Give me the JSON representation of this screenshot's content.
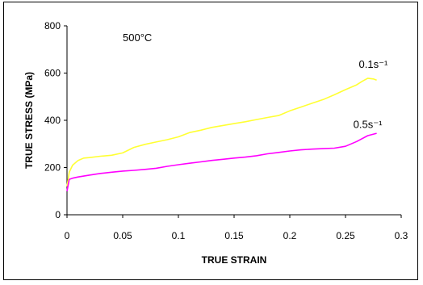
{
  "chart_data": {
    "type": "line",
    "title": "",
    "xlabel": "TRUE STRAIN",
    "ylabel": "TRUE STRESS (MPa)",
    "xlim": [
      0,
      0.3
    ],
    "ylim": [
      0,
      800
    ],
    "xticks": [
      0,
      0.05,
      0.1,
      0.15,
      0.2,
      0.25,
      0.3
    ],
    "xtick_labels": [
      "0",
      "0.05",
      "0.1",
      "0.15",
      "0.2",
      "0.25",
      "0.3"
    ],
    "yticks": [
      0,
      200,
      400,
      600,
      800
    ],
    "ytick_labels": [
      "0",
      "200",
      "400",
      "600",
      "800"
    ],
    "grid": false,
    "legend": "none",
    "annotations": [
      {
        "text": "500°C",
        "x": 0.05,
        "y": 735
      },
      {
        "text": "0.1s⁻¹",
        "x": 0.262,
        "y": 622
      },
      {
        "text": "0.5s⁻¹",
        "x": 0.257,
        "y": 368
      }
    ],
    "series": [
      {
        "color": "#ffff33",
        "x": [
          0,
          0.002,
          0.005,
          0.01,
          0.015,
          0.02,
          0.03,
          0.04,
          0.05,
          0.06,
          0.07,
          0.08,
          0.09,
          0.1,
          0.11,
          0.12,
          0.13,
          0.14,
          0.15,
          0.16,
          0.17,
          0.18,
          0.19,
          0.2,
          0.21,
          0.22,
          0.23,
          0.24,
          0.25,
          0.26,
          0.265,
          0.27,
          0.275,
          0.278
        ],
        "y": [
          120,
          180,
          210,
          230,
          240,
          242,
          248,
          252,
          262,
          285,
          298,
          308,
          318,
          330,
          348,
          358,
          370,
          378,
          386,
          394,
          403,
          412,
          420,
          440,
          456,
          472,
          488,
          508,
          530,
          550,
          565,
          578,
          575,
          570
        ]
      },
      {
        "color": "#ff00ff",
        "x": [
          0,
          0.002,
          0.005,
          0.01,
          0.02,
          0.03,
          0.04,
          0.05,
          0.06,
          0.07,
          0.08,
          0.09,
          0.1,
          0.11,
          0.12,
          0.13,
          0.14,
          0.15,
          0.16,
          0.17,
          0.18,
          0.19,
          0.2,
          0.21,
          0.22,
          0.23,
          0.24,
          0.25,
          0.26,
          0.27,
          0.278
        ],
        "y": [
          100,
          150,
          155,
          160,
          168,
          175,
          180,
          185,
          188,
          192,
          197,
          205,
          212,
          218,
          224,
          230,
          235,
          240,
          244,
          250,
          258,
          264,
          270,
          275,
          278,
          280,
          282,
          290,
          310,
          335,
          345
        ]
      }
    ]
  }
}
